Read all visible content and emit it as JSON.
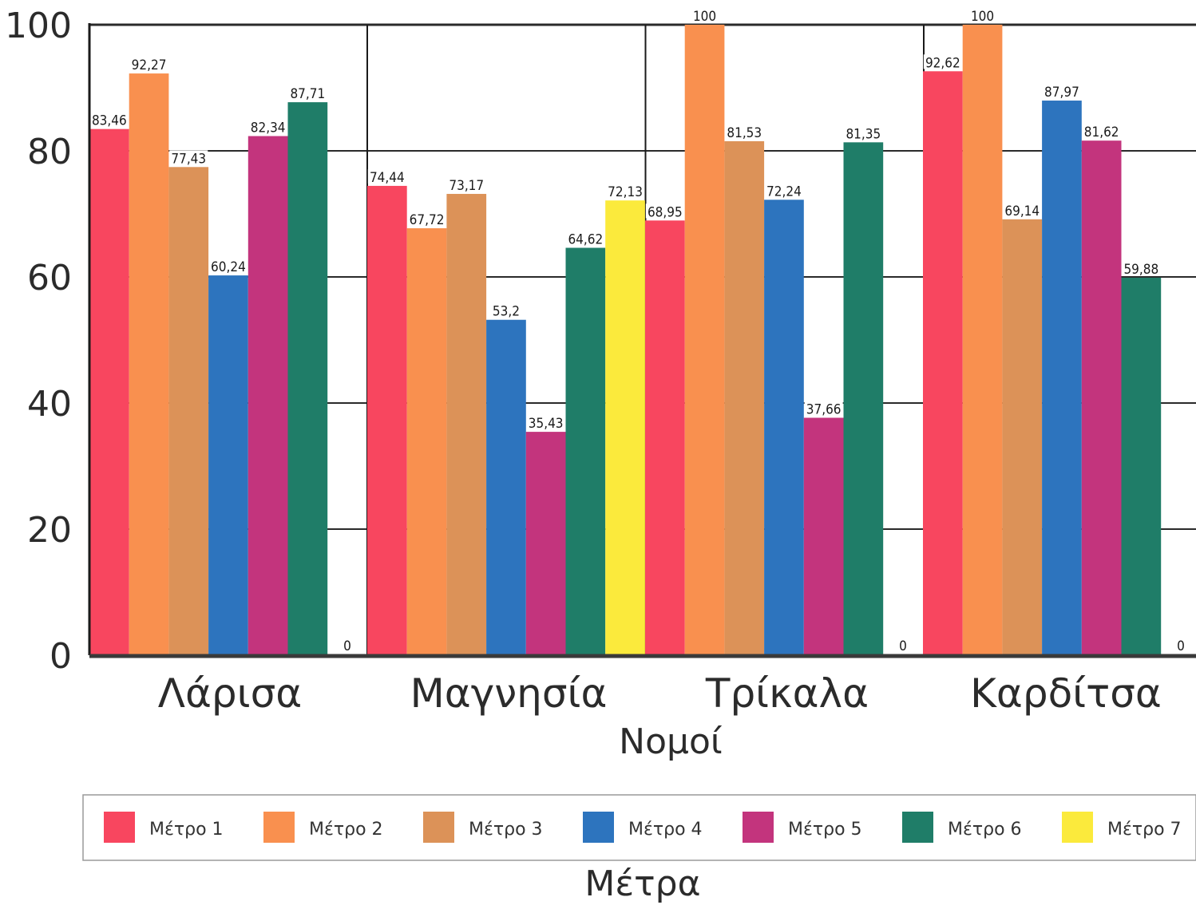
{
  "chart_data": {
    "type": "bar",
    "title": "",
    "xlabel": "Νομοί",
    "ylabel": "",
    "ylim": [
      0,
      100
    ],
    "yticks": [
      "0",
      "20",
      "40",
      "60",
      "80",
      "100"
    ],
    "categories": [
      "Λάρισα",
      "Μαγνησία",
      "Τρίκαλα",
      "Καρδίτσα"
    ],
    "legend": {
      "title": "Μέτρα",
      "position": "bottom"
    },
    "grid": true,
    "series": [
      {
        "name": "Μέτρο 1",
        "color": "#f8465f",
        "values": [
          83.46,
          74.44,
          68.95,
          92.62
        ],
        "labels": [
          "83,46",
          "74,44",
          "68,95",
          "92,62"
        ]
      },
      {
        "name": "Μέτρο 2",
        "color": "#f9904f",
        "values": [
          92.27,
          67.72,
          100,
          100
        ],
        "labels": [
          "92,27",
          "67,72",
          "100",
          "100"
        ]
      },
      {
        "name": "Μέτρο 3",
        "color": "#dc9258",
        "values": [
          77.43,
          73.17,
          81.53,
          69.14
        ],
        "labels": [
          "77,43",
          "73,17",
          "81,53",
          "69,14"
        ]
      },
      {
        "name": "Μέτρο 4",
        "color": "#2d74be",
        "values": [
          60.24,
          53.2,
          72.24,
          87.97
        ],
        "labels": [
          "60,24",
          "53,2",
          "72,24",
          "87,97"
        ]
      },
      {
        "name": "Μέτρο 5",
        "color": "#c3347d",
        "values": [
          82.34,
          35.43,
          37.66,
          81.62
        ],
        "labels": [
          "82,34",
          "35,43",
          "37,66",
          "81,62"
        ]
      },
      {
        "name": "Μέτρο 6",
        "color": "#1f7d68",
        "values": [
          87.71,
          64.62,
          81.35,
          59.88
        ],
        "labels": [
          "87,71",
          "64,62",
          "81,35",
          "59,88"
        ]
      },
      {
        "name": "Μέτρο 7",
        "color": "#fbea3c",
        "values": [
          0,
          72.13,
          0,
          0
        ],
        "labels": [
          "0",
          "72,13",
          "0",
          "0"
        ]
      }
    ]
  }
}
